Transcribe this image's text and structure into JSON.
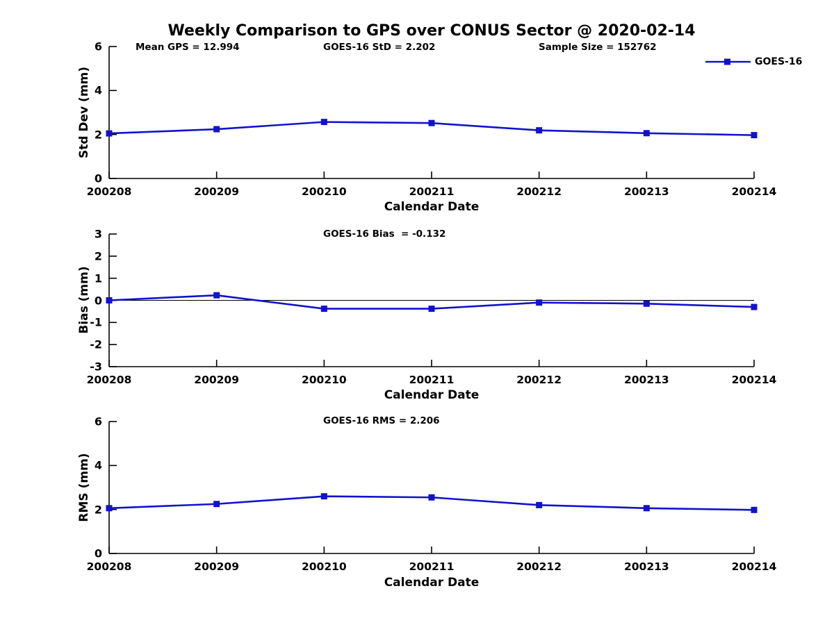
{
  "title": "Weekly Comparison to GPS over CONUS Sector @ 2020-02-14",
  "legend": {
    "label": "GOES-16"
  },
  "x_axis_label": "Calendar Date",
  "colors": {
    "series": "#1212cc",
    "axis": "#000000",
    "text": "#000000",
    "background": "#ffffff",
    "zero_line": "#000000"
  },
  "chart_data": [
    {
      "type": "line",
      "name": "std-dev-plot",
      "annotations": [
        "Mean GPS = 12.994",
        "GOES-16 StD = 2.202",
        "Sample Size = 152762"
      ],
      "ylabel": "Std Dev (mm)",
      "xlabel": "Calendar Date",
      "categories": [
        "200208",
        "200209",
        "200210",
        "200211",
        "200212",
        "200213",
        "200214"
      ],
      "series": [
        {
          "name": "GOES-16",
          "values": [
            2.05,
            2.24,
            2.57,
            2.52,
            2.19,
            2.06,
            1.97
          ]
        }
      ],
      "ylim": [
        0,
        6
      ],
      "yticks": [
        0,
        2,
        4,
        6
      ],
      "grid": false,
      "zero_line": false,
      "legend_position": "top-right-outside"
    },
    {
      "type": "line",
      "name": "bias-plot",
      "annotations": [
        "GOES-16 Bias  = -0.132"
      ],
      "ylabel": "Bias (mm)",
      "xlabel": "Calendar Date",
      "categories": [
        "200208",
        "200209",
        "200210",
        "200211",
        "200212",
        "200213",
        "200214"
      ],
      "series": [
        {
          "name": "GOES-16",
          "values": [
            0.0,
            0.23,
            -0.38,
            -0.38,
            -0.1,
            -0.15,
            -0.3
          ]
        }
      ],
      "ylim": [
        -3,
        3
      ],
      "yticks": [
        -3,
        -2,
        -1,
        0,
        1,
        2,
        3
      ],
      "grid": false,
      "zero_line": true,
      "legend_position": "none"
    },
    {
      "type": "line",
      "name": "rms-plot",
      "annotations": [
        "GOES-16 RMS = 2.206"
      ],
      "ylabel": "RMS (mm)",
      "xlabel": "Calendar Date",
      "categories": [
        "200208",
        "200209",
        "200210",
        "200211",
        "200212",
        "200213",
        "200214"
      ],
      "series": [
        {
          "name": "GOES-16",
          "values": [
            2.06,
            2.25,
            2.6,
            2.55,
            2.2,
            2.06,
            1.98
          ]
        }
      ],
      "ylim": [
        0,
        6
      ],
      "yticks": [
        0,
        2,
        4,
        6
      ],
      "grid": false,
      "zero_line": false,
      "legend_position": "none"
    }
  ]
}
